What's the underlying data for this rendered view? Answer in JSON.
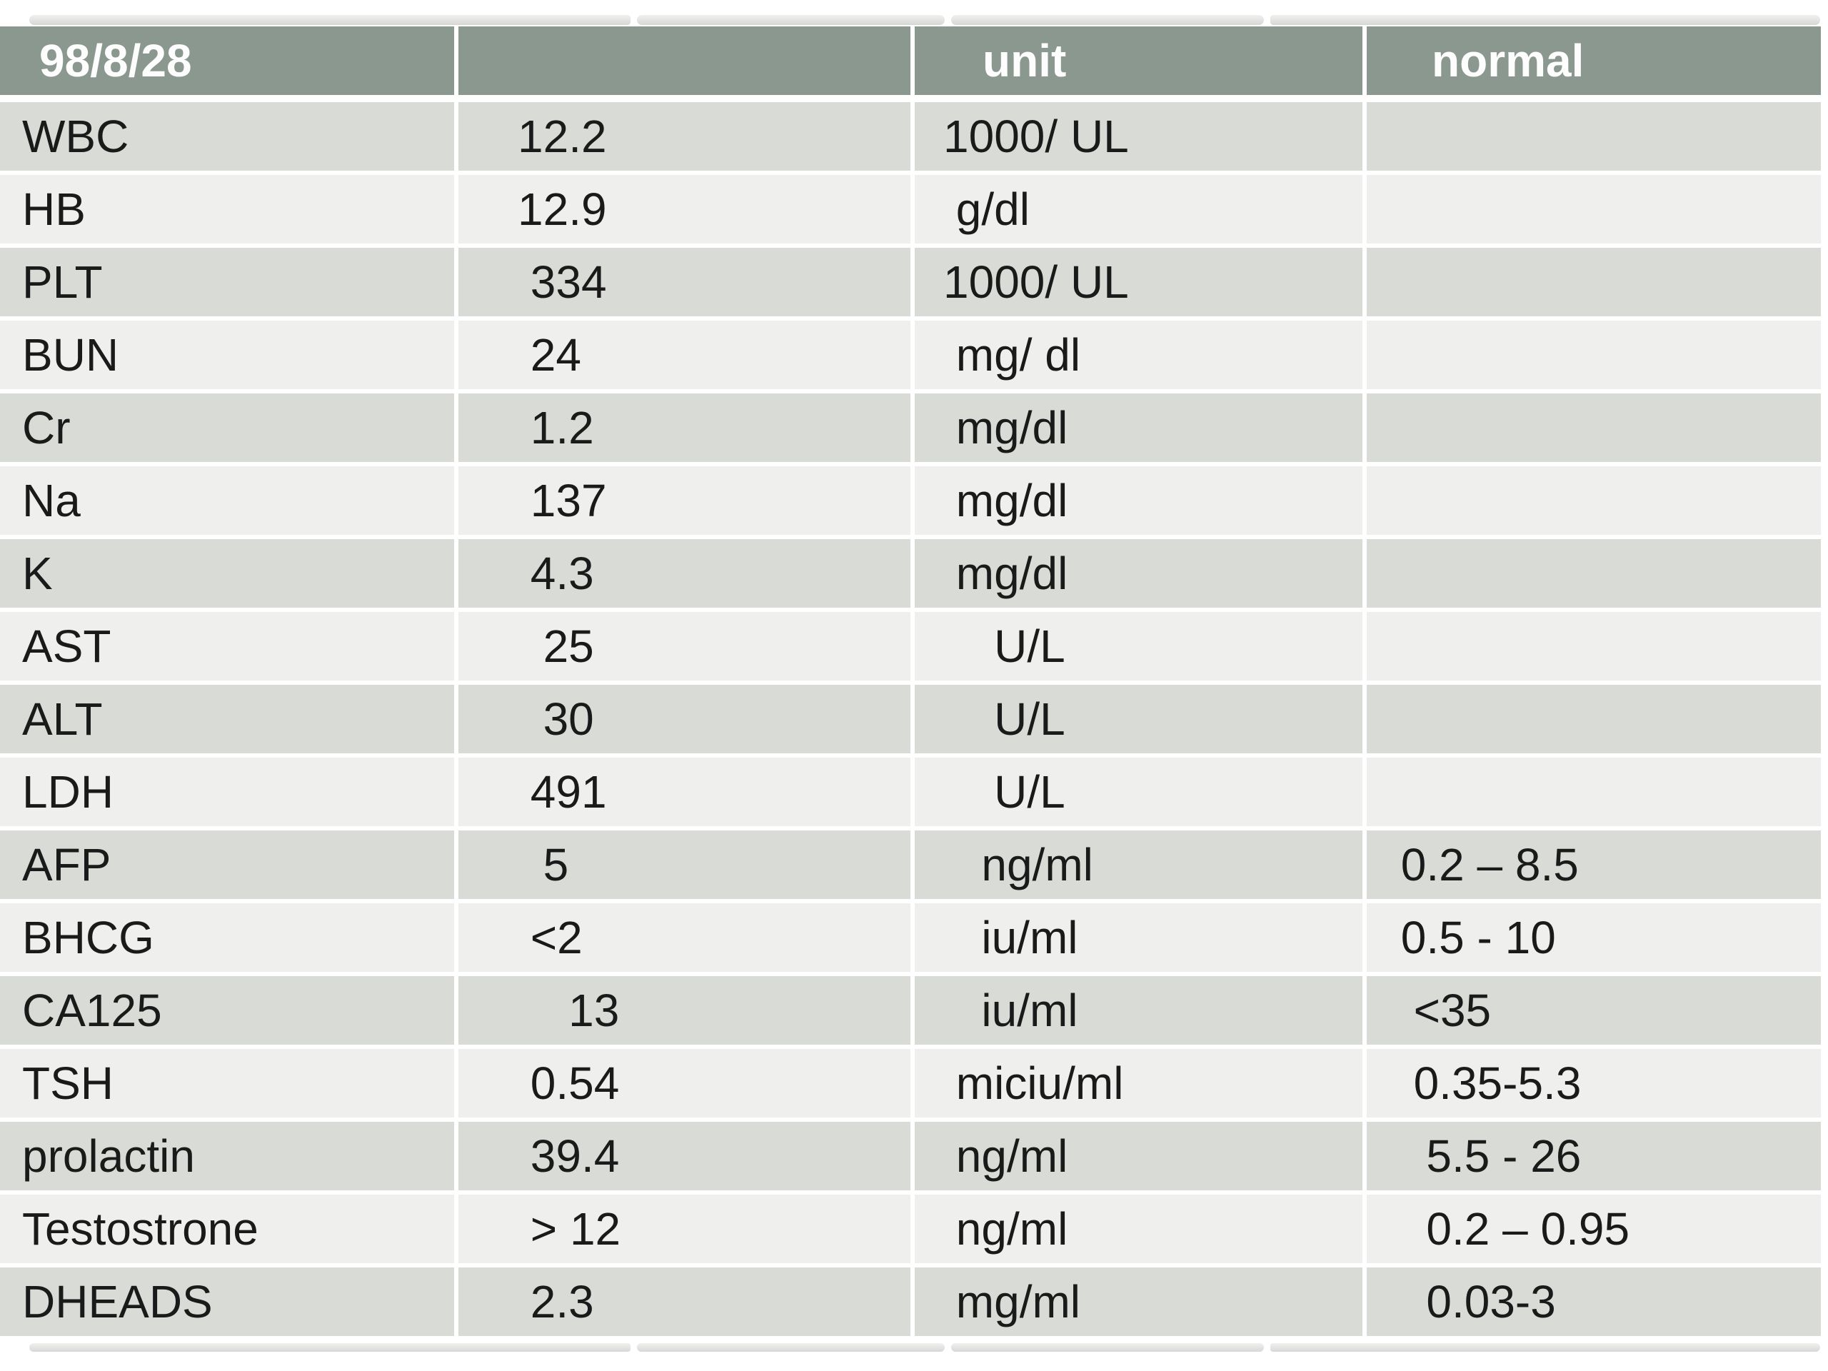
{
  "table": {
    "columns": [
      {
        "label": "98/8/28"
      },
      {
        "label": ""
      },
      {
        "label": "unit"
      },
      {
        "label": "normal"
      }
    ],
    "rows": [
      {
        "test": "WBC",
        "value": "12.2",
        "unit": "1000/ UL",
        "normal": ""
      },
      {
        "test": "HB",
        "value": "12.9",
        "unit": " g/dl",
        "normal": ""
      },
      {
        "test": "PLT",
        "value": " 334",
        "unit": "1000/ UL",
        "normal": ""
      },
      {
        "test": "BUN",
        "value": " 24",
        "unit": " mg/ dl",
        "normal": ""
      },
      {
        "test": "Cr",
        "value": " 1.2",
        "unit": " mg/dl",
        "normal": ""
      },
      {
        "test": "Na",
        "value": " 137",
        "unit": " mg/dl",
        "normal": ""
      },
      {
        "test": "K",
        "value": " 4.3",
        "unit": " mg/dl",
        "normal": ""
      },
      {
        "test": "AST",
        "value": "  25",
        "unit": "    U/L",
        "normal": ""
      },
      {
        "test": "ALT",
        "value": "  30",
        "unit": "    U/L",
        "normal": ""
      },
      {
        "test": "LDH",
        "value": " 491",
        "unit": "    U/L",
        "normal": ""
      },
      {
        "test": "AFP",
        "value": "  5",
        "unit": "   ng/ml",
        "normal": " 0.2 – 8.5"
      },
      {
        "test": "BHCG",
        "value": " <2",
        "unit": "   iu/ml",
        "normal": " 0.5 - 10"
      },
      {
        "test": "CA125",
        "value": "    13",
        "unit": "   iu/ml",
        "normal": "  <35"
      },
      {
        "test": "TSH",
        "value": " 0.54",
        "unit": " miciu/ml",
        "normal": "  0.35-5.3"
      },
      {
        "test": "prolactin",
        "value": " 39.4",
        "unit": " ng/ml",
        "normal": "   5.5 - 26"
      },
      {
        "test": "Testostrone",
        "value": " > 12",
        "unit": " ng/ml",
        "normal": "   0.2 – 0.95"
      },
      {
        "test": "DHEADS",
        "value": " 2.3",
        "unit": " mg/ml",
        "normal": "   0.03-3"
      }
    ],
    "colors": {
      "header_bg": "#8b9890",
      "header_text": "#fdfdfd",
      "band_dark": "#d9dcd6",
      "band_light": "#eff0ed",
      "cell_text": "#1a1a1a",
      "edge_strip": "#e2e4e1",
      "page_bg": "#ffffff"
    }
  }
}
